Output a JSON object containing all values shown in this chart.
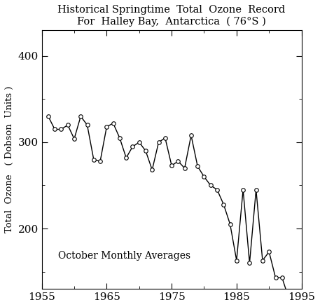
{
  "title_line1": "Historical Springtime  Total  Ozone  Record",
  "title_line2": "For  Halley Bay,  Antarctica  ( 76°S )",
  "xlabel": "",
  "ylabel": "Total  Ozone   ( Dobson  Units )",
  "annotation": "October Monthly Averages",
  "years": [
    1956,
    1957,
    1958,
    1959,
    1960,
    1961,
    1962,
    1963,
    1964,
    1965,
    1966,
    1967,
    1968,
    1969,
    1970,
    1971,
    1972,
    1973,
    1974,
    1975,
    1976,
    1977,
    1978,
    1979,
    1980,
    1981,
    1982,
    1983,
    1984,
    1985,
    1986,
    1987,
    1988,
    1989,
    1990,
    1991,
    1992,
    1993
  ],
  "ozone": [
    330,
    315,
    315,
    320,
    304,
    330,
    320,
    280,
    278,
    318,
    322,
    305,
    282,
    295,
    300,
    290,
    268,
    300,
    305,
    273,
    278,
    270,
    308,
    272,
    260,
    250,
    245,
    228,
    205,
    163,
    245,
    160,
    245,
    163,
    173,
    143,
    143,
    120
  ],
  "xlim": [
    1955,
    1995
  ],
  "ylim": [
    130,
    430
  ],
  "yticks": [
    200,
    300,
    400
  ],
  "xticks": [
    1955,
    1965,
    1975,
    1985,
    1995
  ],
  "background_color": "#ffffff",
  "line_color": "#000000",
  "marker_color": "#ffffff",
  "marker_edge_color": "#000000",
  "fontfamily": "serif"
}
